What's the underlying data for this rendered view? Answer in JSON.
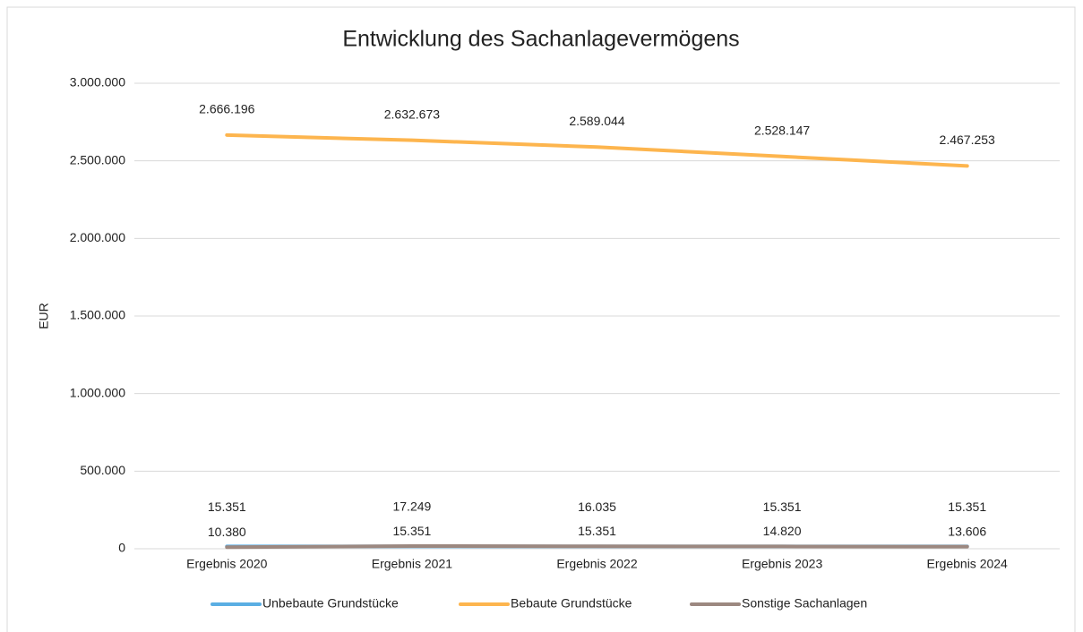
{
  "chart_data": {
    "type": "line",
    "title": "Entwicklung des Sachanlagevermögens",
    "y_label": "EUR",
    "categories": [
      "Ergebnis 2020",
      "Ergebnis 2021",
      "Ergebnis 2022",
      "Ergebnis 2023",
      "Ergebnis 2024"
    ],
    "series": [
      {
        "name": "Unbebaute Grundstücke",
        "color": "#5aaee3",
        "values": [
          15351,
          15351,
          15351,
          15351,
          15351
        ],
        "value_labels": [
          "15.351",
          "15.351",
          "15.351",
          "15.351",
          "15.351"
        ]
      },
      {
        "name": "Bebaute Grundstücke",
        "color": "#fdb54e",
        "values": [
          2666196,
          2632673,
          2589044,
          2528147,
          2467253
        ],
        "value_labels": [
          "2.666.196",
          "2.632.673",
          "2.589.044",
          "2.528.147",
          "2.467.253"
        ]
      },
      {
        "name": "Sonstige Sachanlagen",
        "color": "#9c8880",
        "values": [
          10380,
          17249,
          16035,
          14820,
          13606
        ],
        "value_labels": [
          "10.380",
          "17.249",
          "16.035",
          "14.820",
          "13.606"
        ]
      }
    ],
    "ylim": [
      0,
      3000000
    ],
    "yticks": [
      0,
      {
        "value": 500000,
        "label": "500.000"
      },
      {
        "value": 1000000,
        "label": "1.000.000"
      },
      {
        "value": 1500000,
        "label": "1.500.000"
      },
      {
        "value": 2000000,
        "label": "2.000.000"
      },
      {
        "value": 2500000,
        "label": "2.500.000"
      },
      {
        "value": 3000000,
        "label": "3.000.000"
      }
    ],
    "grid": true,
    "legend": "bottom"
  }
}
